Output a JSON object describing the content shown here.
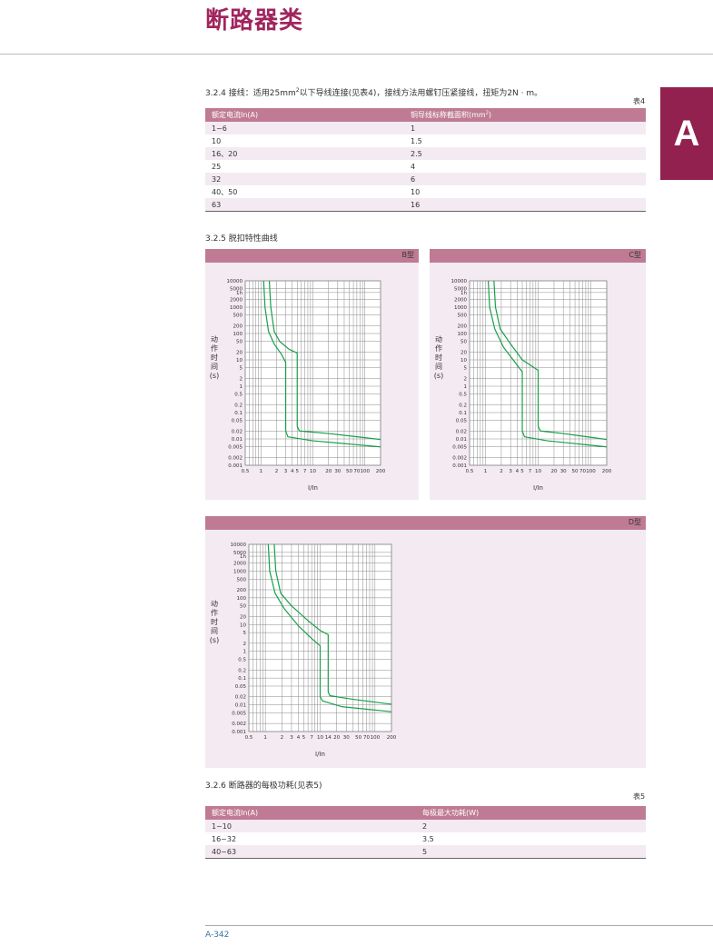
{
  "header": {
    "title": "断路器类"
  },
  "side_tab": {
    "letter": "A"
  },
  "s324": {
    "text_a": "3.2.4 接线：适用25mm",
    "sup": "2",
    "text_b": "以下导线连接(见表4)，接线方法用螺钉压紧接线，扭矩为2N · m。"
  },
  "table4": {
    "caption": "表4",
    "header_1": "额定电流In(A)",
    "header_2a": "铜导线标称截面积(mm",
    "header_2sup": "2",
    "header_2b": ")",
    "rows": [
      [
        "1~6",
        "1"
      ],
      [
        "10",
        "1.5"
      ],
      [
        "16、20",
        "2.5"
      ],
      [
        "25",
        "4"
      ],
      [
        "32",
        "6"
      ],
      [
        "40、50",
        "10"
      ],
      [
        "63",
        "16"
      ]
    ]
  },
  "s325": {
    "text": "3.2.5 脱扣特性曲线"
  },
  "chart_data": [
    {
      "type": "line",
      "label": "B型",
      "ylabel": "动作时间(s)",
      "xlabel": "I/In",
      "y_scale": "log",
      "x_scale": "log",
      "y_ticks": [
        "10000",
        "5000",
        "1h",
        "2000",
        "1000",
        "500",
        "200",
        "100",
        "50",
        "20",
        "10",
        "5",
        "2",
        "1",
        "0.5",
        "0.2",
        "0.1",
        "0.05",
        "0.02",
        "0.01",
        "0.005",
        "0.002",
        "0.001"
      ],
      "x_ticks": [
        "0.5",
        "1",
        "2",
        "3",
        "4",
        "5",
        "7",
        "10",
        "20",
        "30",
        "50",
        "70",
        "100",
        "200"
      ],
      "ylim": [
        0.001,
        10000
      ],
      "xlim": [
        0.5,
        200
      ],
      "series": [
        {
          "points": [
            [
              1.13,
              10000
            ],
            [
              1.2,
              1000
            ],
            [
              1.4,
              120
            ],
            [
              1.8,
              40
            ],
            [
              2.5,
              16
            ],
            [
              3,
              8
            ],
            [
              3,
              0.02
            ],
            [
              3.3,
              0.012
            ],
            [
              10,
              0.0085
            ],
            [
              200,
              0.005
            ]
          ]
        },
        {
          "points": [
            [
              1.45,
              10000
            ],
            [
              1.55,
              1000
            ],
            [
              1.8,
              120
            ],
            [
              2.3,
              50
            ],
            [
              3.5,
              25
            ],
            [
              5,
              18
            ],
            [
              5,
              0.03
            ],
            [
              5.5,
              0.02
            ],
            [
              20,
              0.016
            ],
            [
              200,
              0.0095
            ]
          ]
        }
      ]
    },
    {
      "type": "line",
      "label": "C型",
      "ylabel": "动作时间(s)",
      "xlabel": "I/In",
      "y_scale": "log",
      "x_scale": "log",
      "y_ticks": [
        "10000",
        "5000",
        "1h",
        "2000",
        "1000",
        "500",
        "200",
        "100",
        "50",
        "20",
        "10",
        "5",
        "2",
        "1",
        "0.5",
        "0.2",
        "0.1",
        "0.05",
        "0.02",
        "0.01",
        "0.005",
        "0.002",
        "0.001"
      ],
      "x_ticks": [
        "0.5",
        "1",
        "2",
        "3",
        "4",
        "5",
        "7",
        "10",
        "20",
        "30",
        "50",
        "70",
        "100",
        "200"
      ],
      "ylim": [
        0.001,
        10000
      ],
      "xlim": [
        0.5,
        200
      ],
      "series": [
        {
          "points": [
            [
              1.13,
              10000
            ],
            [
              1.2,
              1000
            ],
            [
              1.5,
              150
            ],
            [
              2.2,
              30
            ],
            [
              3.5,
              9
            ],
            [
              5,
              3.5
            ],
            [
              5,
              0.02
            ],
            [
              5.5,
              0.012
            ],
            [
              15,
              0.0085
            ],
            [
              200,
              0.005
            ]
          ]
        },
        {
          "points": [
            [
              1.45,
              10000
            ],
            [
              1.55,
              1000
            ],
            [
              1.9,
              150
            ],
            [
              3,
              40
            ],
            [
              5,
              10
            ],
            [
              10,
              4
            ],
            [
              10,
              0.03
            ],
            [
              11,
              0.02
            ],
            [
              30,
              0.016
            ],
            [
              200,
              0.0095
            ]
          ]
        }
      ]
    },
    {
      "type": "line",
      "label": "D型",
      "ylabel": "动作时间(s)",
      "xlabel": "I/In",
      "y_scale": "log",
      "x_scale": "log",
      "y_ticks": [
        "10000",
        "5000",
        "1h",
        "2000",
        "1000",
        "500",
        "200",
        "100",
        "50",
        "20",
        "10",
        "5",
        "2",
        "1",
        "0.5",
        "0.2",
        "0.1",
        "0.05",
        "0.02",
        "0.01",
        "0.005",
        "0.002",
        "0.001"
      ],
      "x_ticks": [
        "0.5",
        "1",
        "2",
        "3",
        "4",
        "5",
        "7",
        "10",
        "14",
        "20",
        "30",
        "50",
        "70",
        "100",
        "200"
      ],
      "ylim": [
        0.001,
        10000
      ],
      "xlim": [
        0.5,
        200
      ],
      "series": [
        {
          "points": [
            [
              1.13,
              10000
            ],
            [
              1.2,
              1000
            ],
            [
              1.5,
              150
            ],
            [
              2.2,
              40
            ],
            [
              4,
              9
            ],
            [
              7,
              3
            ],
            [
              10,
              1.6
            ],
            [
              10,
              0.02
            ],
            [
              11,
              0.014
            ],
            [
              25,
              0.0085
            ],
            [
              200,
              0.0055
            ]
          ]
        },
        {
          "points": [
            [
              1.45,
              10000
            ],
            [
              1.55,
              1000
            ],
            [
              1.9,
              150
            ],
            [
              3,
              50
            ],
            [
              6,
              14
            ],
            [
              10,
              6
            ],
            [
              14,
              4.2
            ],
            [
              14,
              0.03
            ],
            [
              15,
              0.022
            ],
            [
              40,
              0.016
            ],
            [
              200,
              0.0105
            ]
          ]
        }
      ]
    }
  ],
  "s326": {
    "text": "3.2.6 断路器的每极功耗(见表5)"
  },
  "table5": {
    "caption": "表5",
    "header_1": "额定电流In(A)",
    "header_2": "每极最大功耗(W)",
    "rows": [
      [
        "1~10",
        "2"
      ],
      [
        "16~32",
        "3.5"
      ],
      [
        "40~63",
        "5"
      ]
    ]
  },
  "footer": {
    "page": "A-342"
  },
  "colors": {
    "brand": "#a0255d",
    "tab": "#92214f",
    "table_header": "#bf7b93",
    "panel_bg": "#f3eaf2",
    "curve": "#17a04a",
    "grid": "#8a8a8a"
  }
}
